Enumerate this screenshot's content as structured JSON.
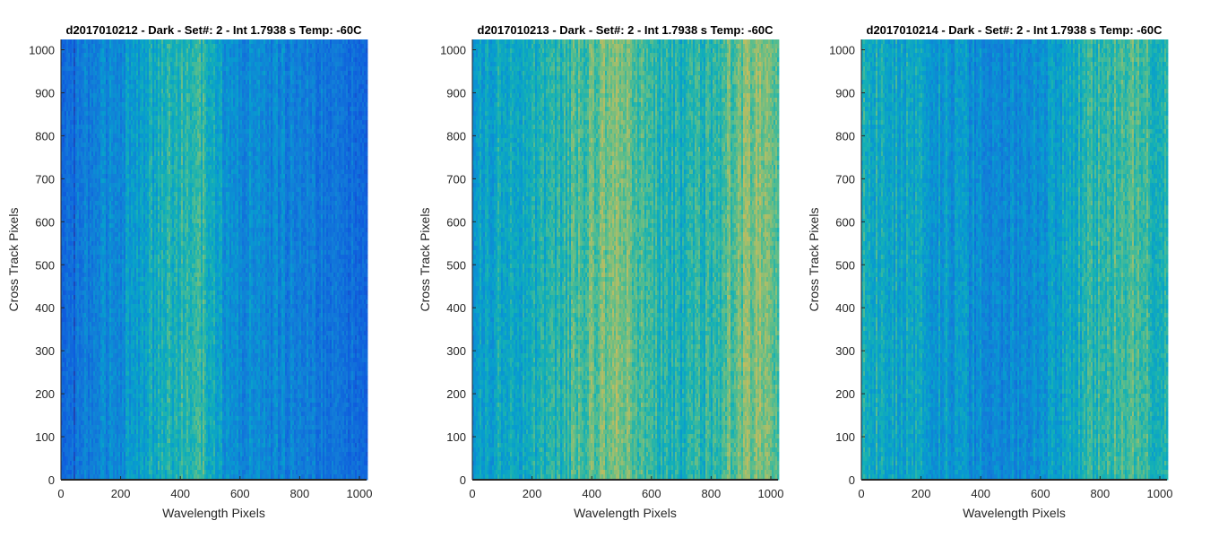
{
  "chart_data": [
    {
      "type": "heatmap",
      "title": "d2017010212 - Dark - Set#: 2 - Int 1.7938 s Temp: -60C",
      "xlabel": "Wavelength Pixels",
      "ylabel": "Cross Track Pixels",
      "xlim": [
        0,
        1024
      ],
      "ylim": [
        0,
        1024
      ],
      "xticks": [
        "0",
        "200",
        "400",
        "600",
        "800",
        "1000"
      ],
      "yticks": [
        "0",
        "100",
        "200",
        "300",
        "400",
        "500",
        "600",
        "700",
        "800",
        "900",
        "1000"
      ],
      "colormap": "parula",
      "column_profile": {
        "x": [
          0,
          40,
          60,
          100,
          150,
          200,
          250,
          300,
          350,
          400,
          450,
          500,
          520,
          560,
          600,
          650,
          700,
          750,
          800,
          850,
          900,
          950,
          1000,
          1024
        ],
        "level": [
          0.18,
          0.2,
          0.26,
          0.3,
          0.33,
          0.37,
          0.42,
          0.47,
          0.52,
          0.55,
          0.56,
          0.52,
          0.44,
          0.38,
          0.36,
          0.35,
          0.33,
          0.32,
          0.3,
          0.29,
          0.27,
          0.26,
          0.24,
          0.22
        ]
      }
    },
    {
      "type": "heatmap",
      "title": "d2017010213 - Dark - Set#: 2 - Int 1.7938 s Temp: -60C",
      "xlabel": "Wavelength Pixels",
      "ylabel": "Cross Track Pixels",
      "xlim": [
        0,
        1024
      ],
      "ylim": [
        0,
        1024
      ],
      "xticks": [
        "0",
        "200",
        "400",
        "600",
        "800",
        "1000"
      ],
      "yticks": [
        "0",
        "100",
        "200",
        "300",
        "400",
        "500",
        "600",
        "700",
        "800",
        "900",
        "1000"
      ],
      "colormap": "parula",
      "column_profile": {
        "x": [
          0,
          50,
          100,
          150,
          200,
          250,
          300,
          350,
          400,
          450,
          480,
          520,
          560,
          600,
          650,
          700,
          750,
          800,
          850,
          900,
          950,
          1000,
          1024
        ],
        "level": [
          0.42,
          0.45,
          0.48,
          0.49,
          0.5,
          0.52,
          0.55,
          0.58,
          0.62,
          0.66,
          0.68,
          0.66,
          0.6,
          0.55,
          0.52,
          0.5,
          0.52,
          0.55,
          0.6,
          0.64,
          0.66,
          0.65,
          0.62
        ]
      }
    },
    {
      "type": "heatmap",
      "title": "d2017010214 - Dark - Set#: 2 - Int 1.7938 s Temp: -60C",
      "xlabel": "Wavelength Pixels",
      "ylabel": "Cross Track Pixels",
      "xlim": [
        0,
        1024
      ],
      "ylim": [
        0,
        1024
      ],
      "xticks": [
        "0",
        "200",
        "400",
        "600",
        "800",
        "1000"
      ],
      "yticks": [
        "0",
        "100",
        "200",
        "300",
        "400",
        "500",
        "600",
        "700",
        "800",
        "900",
        "1000"
      ],
      "colormap": "parula",
      "column_profile": {
        "x": [
          0,
          50,
          100,
          150,
          200,
          250,
          300,
          350,
          400,
          450,
          500,
          550,
          600,
          650,
          700,
          750,
          800,
          850,
          900,
          950,
          1000,
          1024
        ],
        "level": [
          0.5,
          0.5,
          0.48,
          0.46,
          0.44,
          0.42,
          0.4,
          0.38,
          0.36,
          0.35,
          0.35,
          0.37,
          0.4,
          0.44,
          0.48,
          0.52,
          0.55,
          0.57,
          0.58,
          0.56,
          0.53,
          0.5
        ]
      }
    }
  ]
}
